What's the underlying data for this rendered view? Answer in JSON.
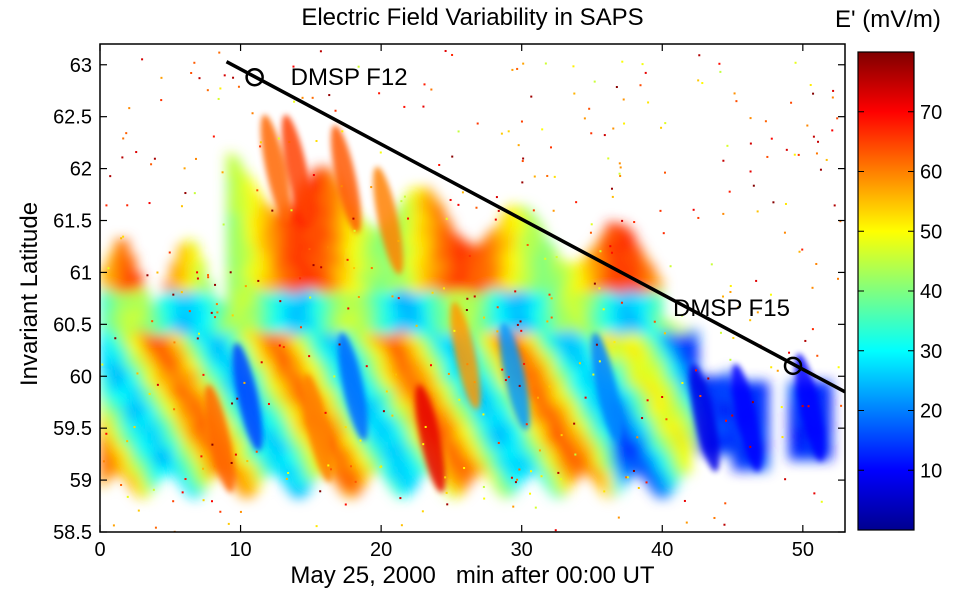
{
  "chart_data": {
    "type": "heatmap",
    "title": "Electric Field Variability in SAPS",
    "xlabel": "May 25, 2000   min after 00:00 UT",
    "ylabel": "Invariant Latitude",
    "xlim": [
      0,
      53
    ],
    "ylim": [
      58.5,
      63.2
    ],
    "xticks": [
      "0",
      "10",
      "20",
      "30",
      "40",
      "50"
    ],
    "xtick_values": [
      0,
      10,
      20,
      30,
      40,
      50
    ],
    "yticks": [
      "58.5",
      "59",
      "59.5",
      "60",
      "60.5",
      "61",
      "61.5",
      "62",
      "62.5",
      "63"
    ],
    "ytick_values": [
      58.5,
      59,
      59.5,
      60,
      60.5,
      61,
      61.5,
      62,
      62.5,
      63
    ],
    "colorbar": {
      "label": "E' (mV/m)",
      "min": 0,
      "max": 80,
      "ticks": [
        "10",
        "20",
        "30",
        "40",
        "50",
        "60",
        "70"
      ],
      "tick_values": [
        10,
        20,
        30,
        40,
        50,
        60,
        70
      ],
      "colormap": "jet"
    },
    "trajectory": {
      "points": [
        [
          9,
          63.03
        ],
        [
          53,
          59.85
        ]
      ],
      "color": "#000000",
      "markers": [
        {
          "label": "DMSP F12",
          "x": 11,
          "y": 62.88
        },
        {
          "label": "DMSP F15",
          "x": 49.3,
          "y": 60.1
        }
      ]
    },
    "streaks": [
      {
        "x": 12.5,
        "lat": 62.0,
        "value": 62
      },
      {
        "x": 14.0,
        "lat": 62.0,
        "value": 65
      },
      {
        "x": 17.5,
        "lat": 61.9,
        "value": 63
      },
      {
        "x": 20.5,
        "lat": 61.5,
        "value": 60
      },
      {
        "x": 23.5,
        "lat": 59.4,
        "value": 72
      },
      {
        "x": 26.0,
        "lat": 60.2,
        "value": 58
      },
      {
        "x": 8.5,
        "lat": 59.4,
        "value": 62
      },
      {
        "x": 15.5,
        "lat": 59.5,
        "value": 60
      },
      {
        "x": 10.5,
        "lat": 59.8,
        "value": 15
      },
      {
        "x": 18.0,
        "lat": 59.9,
        "value": 18
      },
      {
        "x": 29.5,
        "lat": 60.0,
        "value": 22
      },
      {
        "x": 36.0,
        "lat": 59.9,
        "value": 20
      },
      {
        "x": 43.0,
        "lat": 59.6,
        "value": 8
      },
      {
        "x": 46.0,
        "lat": 59.6,
        "value": 10
      },
      {
        "x": 50.5,
        "lat": 59.7,
        "value": 10
      }
    ]
  }
}
